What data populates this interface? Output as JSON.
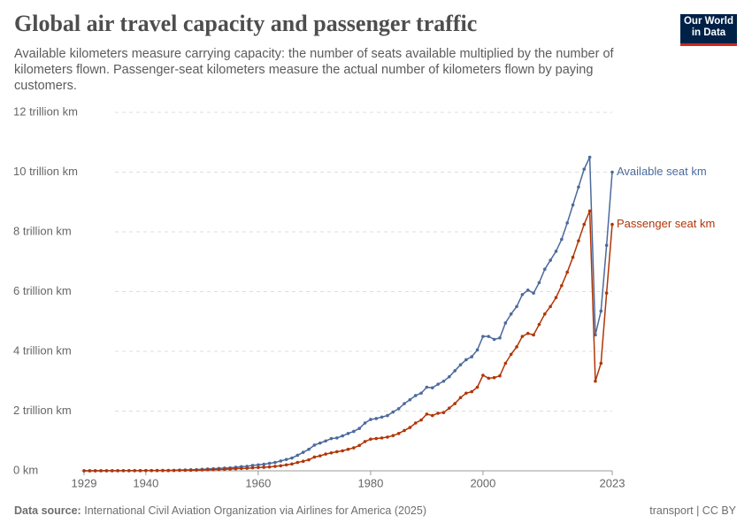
{
  "chart_data": {
    "type": "line",
    "title": "Global air travel capacity and passenger traffic",
    "subtitle": "Available kilometers measure carrying capacity: the number of seats available multiplied by the number of kilometers flown. Passenger-seat kilometers measure the actual number of kilometers flown by paying customers.",
    "logo": "Our World in Data",
    "source_label": "Data source:",
    "source": "International Civil Aviation Organization via Airlines for America (2025)",
    "note": "transport | CC BY",
    "x": [
      1929,
      1930,
      1931,
      1932,
      1933,
      1934,
      1935,
      1936,
      1937,
      1938,
      1939,
      1940,
      1941,
      1942,
      1943,
      1944,
      1945,
      1946,
      1947,
      1948,
      1949,
      1950,
      1951,
      1952,
      1953,
      1954,
      1955,
      1956,
      1957,
      1958,
      1959,
      1960,
      1961,
      1962,
      1963,
      1964,
      1965,
      1966,
      1967,
      1968,
      1969,
      1970,
      1971,
      1972,
      1973,
      1974,
      1975,
      1976,
      1977,
      1978,
      1979,
      1980,
      1981,
      1982,
      1983,
      1984,
      1985,
      1986,
      1987,
      1988,
      1989,
      1990,
      1991,
      1992,
      1993,
      1994,
      1995,
      1996,
      1997,
      1998,
      1999,
      2000,
      2001,
      2002,
      2003,
      2004,
      2005,
      2006,
      2007,
      2008,
      2009,
      2010,
      2011,
      2012,
      2013,
      2014,
      2015,
      2016,
      2017,
      2018,
      2019,
      2020,
      2021,
      2022,
      2023
    ],
    "xlim": [
      1929,
      2023
    ],
    "xticks": [
      1929,
      1940,
      1960,
      1980,
      2000,
      2023
    ],
    "ylim": [
      0,
      12
    ],
    "yticks": [
      {
        "value": 0,
        "label": "0 km"
      },
      {
        "value": 2,
        "label": "2 trillion km"
      },
      {
        "value": 4,
        "label": "4 trillion km"
      },
      {
        "value": 6,
        "label": "6 trillion km"
      },
      {
        "value": 8,
        "label": "8 trillion km"
      },
      {
        "value": 10,
        "label": "10 trillion km"
      },
      {
        "value": 12,
        "label": "12 trillion km"
      }
    ],
    "grid": true,
    "series": [
      {
        "name": "Available seat km",
        "color": "#4c6a9c",
        "values": [
          0.001,
          0.002,
          0.002,
          0.003,
          0.003,
          0.004,
          0.005,
          0.006,
          0.007,
          0.008,
          0.009,
          0.01,
          0.011,
          0.012,
          0.013,
          0.015,
          0.018,
          0.025,
          0.03,
          0.035,
          0.04,
          0.05,
          0.06,
          0.07,
          0.08,
          0.09,
          0.1,
          0.12,
          0.14,
          0.15,
          0.18,
          0.2,
          0.22,
          0.25,
          0.28,
          0.33,
          0.38,
          0.43,
          0.52,
          0.62,
          0.72,
          0.86,
          0.93,
          1.0,
          1.08,
          1.1,
          1.17,
          1.25,
          1.32,
          1.42,
          1.6,
          1.72,
          1.75,
          1.8,
          1.85,
          1.97,
          2.08,
          2.25,
          2.38,
          2.52,
          2.6,
          2.8,
          2.78,
          2.9,
          3.0,
          3.15,
          3.35,
          3.55,
          3.72,
          3.82,
          4.05,
          4.5,
          4.5,
          4.4,
          4.45,
          4.95,
          5.25,
          5.5,
          5.9,
          6.05,
          5.95,
          6.3,
          6.75,
          7.05,
          7.35,
          7.75,
          8.3,
          8.9,
          9.5,
          10.1,
          10.5,
          4.55,
          5.35,
          7.55,
          10.0
        ]
      },
      {
        "name": "Passenger seat km",
        "color": "#b13507",
        "values": [
          0.0005,
          0.001,
          0.001,
          0.0015,
          0.002,
          0.002,
          0.003,
          0.003,
          0.004,
          0.004,
          0.005,
          0.006,
          0.006,
          0.007,
          0.008,
          0.009,
          0.01,
          0.015,
          0.018,
          0.02,
          0.024,
          0.03,
          0.035,
          0.04,
          0.045,
          0.05,
          0.06,
          0.07,
          0.08,
          0.085,
          0.1,
          0.11,
          0.12,
          0.13,
          0.15,
          0.17,
          0.2,
          0.23,
          0.28,
          0.32,
          0.37,
          0.46,
          0.5,
          0.56,
          0.6,
          0.64,
          0.67,
          0.72,
          0.77,
          0.85,
          0.98,
          1.06,
          1.08,
          1.1,
          1.13,
          1.18,
          1.25,
          1.35,
          1.45,
          1.6,
          1.7,
          1.9,
          1.85,
          1.93,
          1.95,
          2.1,
          2.25,
          2.45,
          2.6,
          2.65,
          2.8,
          3.2,
          3.1,
          3.12,
          3.18,
          3.6,
          3.9,
          4.15,
          4.5,
          4.6,
          4.55,
          4.9,
          5.25,
          5.5,
          5.8,
          6.2,
          6.65,
          7.15,
          7.7,
          8.25,
          8.7,
          3.0,
          3.6,
          5.95,
          8.25
        ]
      }
    ]
  }
}
